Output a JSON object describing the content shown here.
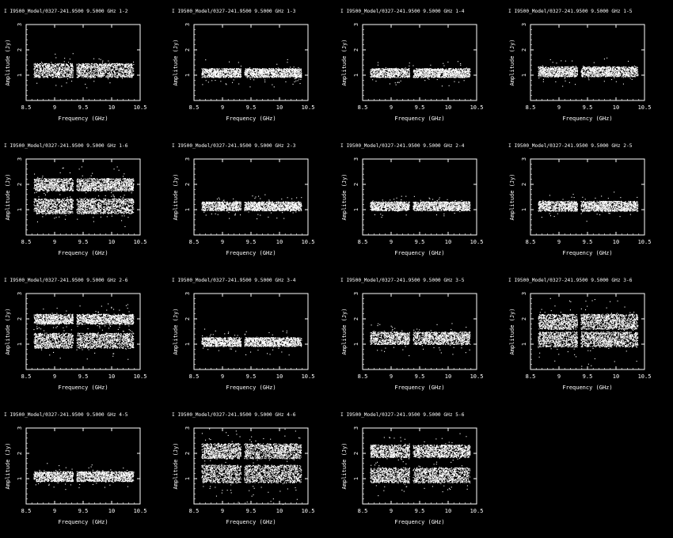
{
  "theme": {
    "background": "#000000",
    "foreground": "#ffffff"
  },
  "chart_data": [
    {
      "type": "scatter",
      "title": "I I9500_Model/0327-241.9500 9.5000 GHz  1-2",
      "xlabel": "Frequency (GHz)",
      "ylabel": "Amplitude (Jy)",
      "xlim": [
        8.5,
        10.5
      ],
      "ylim": [
        0,
        3
      ],
      "xticks": [
        8.5,
        9,
        9.5,
        10,
        10.5
      ],
      "yticks": [
        1,
        2,
        3
      ],
      "gap": [
        9.32,
        9.38
      ],
      "bands": [
        {
          "center": 1.2,
          "halfwidth": 0.28
        }
      ],
      "spread": 0.12
    },
    {
      "type": "scatter",
      "title": "I I9500_Model/0327-241.9500 9.5000 GHz  1-3",
      "xlabel": "Frequency (GHz)",
      "ylabel": "Amplitude (Jy)",
      "xlim": [
        8.5,
        10.5
      ],
      "ylim": [
        0,
        3
      ],
      "xticks": [
        8.5,
        9,
        9.5,
        10,
        10.5
      ],
      "yticks": [
        1,
        2,
        3
      ],
      "gap": [
        9.32,
        9.38
      ],
      "bands": [
        {
          "center": 1.1,
          "halfwidth": 0.18
        }
      ],
      "spread": 0.1
    },
    {
      "type": "scatter",
      "title": "I I9500_Model/0327-241.9500 9.5000 GHz  1-4",
      "xlabel": "Frequency (GHz)",
      "ylabel": "Amplitude (Jy)",
      "xlim": [
        8.5,
        10.5
      ],
      "ylim": [
        0,
        3
      ],
      "xticks": [
        8.5,
        9,
        9.5,
        10,
        10.5
      ],
      "yticks": [
        1,
        2,
        3
      ],
      "gap": [
        9.32,
        9.38
      ],
      "bands": [
        {
          "center": 1.1,
          "halfwidth": 0.18
        }
      ],
      "spread": 0.1
    },
    {
      "type": "scatter",
      "title": "I I9500_Model/0327-241.9500 9.5000 GHz  1-5",
      "xlabel": "Frequency (GHz)",
      "ylabel": "Amplitude (Jy)",
      "xlim": [
        8.5,
        10.5
      ],
      "ylim": [
        0,
        3
      ],
      "xticks": [
        8.5,
        9,
        9.5,
        10,
        10.5
      ],
      "yticks": [
        1,
        2,
        3
      ],
      "gap": [
        9.32,
        9.38
      ],
      "bands": [
        {
          "center": 1.15,
          "halfwidth": 0.2
        }
      ],
      "spread": 0.1
    },
    {
      "type": "scatter",
      "title": "I I9500_Model/0327-241.9500 9.5000 GHz  1-6",
      "xlabel": "Frequency (GHz)",
      "ylabel": "Amplitude (Jy)",
      "xlim": [
        8.5,
        10.5
      ],
      "ylim": [
        0,
        3
      ],
      "xticks": [
        8.5,
        9,
        9.5,
        10,
        10.5
      ],
      "yticks": [
        1,
        2,
        3
      ],
      "gap": [
        9.32,
        9.38
      ],
      "bands": [
        {
          "center": 1.15,
          "halfwidth": 0.3
        },
        {
          "center": 2.0,
          "halfwidth": 0.25
        }
      ],
      "spread": 0.15
    },
    {
      "type": "scatter",
      "title": "I I9500_Model/0327-241.9500 9.5000 GHz  2-3",
      "xlabel": "Frequency (GHz)",
      "ylabel": "Amplitude (Jy)",
      "xlim": [
        8.5,
        10.5
      ],
      "ylim": [
        0,
        3
      ],
      "xticks": [
        8.5,
        9,
        9.5,
        10,
        10.5
      ],
      "yticks": [
        1,
        2,
        3
      ],
      "gap": [
        9.32,
        9.38
      ],
      "bands": [
        {
          "center": 1.15,
          "halfwidth": 0.18
        }
      ],
      "spread": 0.1
    },
    {
      "type": "scatter",
      "title": "I I9500_Model/0327-241.9500 9.5000 GHz  2-4",
      "xlabel": "Frequency (GHz)",
      "ylabel": "Amplitude (Jy)",
      "xlim": [
        8.5,
        10.5
      ],
      "ylim": [
        0,
        3
      ],
      "xticks": [
        8.5,
        9,
        9.5,
        10,
        10.5
      ],
      "yticks": [
        1,
        2,
        3
      ],
      "gap": [
        9.32,
        9.38
      ],
      "bands": [
        {
          "center": 1.15,
          "halfwidth": 0.18
        }
      ],
      "spread": 0.1
    },
    {
      "type": "scatter",
      "title": "I I9500_Model/0327-241.9500 9.5000 GHz  2-5",
      "xlabel": "Frequency (GHz)",
      "ylabel": "Amplitude (Jy)",
      "xlim": [
        8.5,
        10.5
      ],
      "ylim": [
        0,
        3
      ],
      "xticks": [
        8.5,
        9,
        9.5,
        10,
        10.5
      ],
      "yticks": [
        1,
        2,
        3
      ],
      "gap": [
        9.32,
        9.38
      ],
      "bands": [
        {
          "center": 1.15,
          "halfwidth": 0.2
        }
      ],
      "spread": 0.1
    },
    {
      "type": "scatter",
      "title": "I I9500_Model/0327-241.9500 9.5000 GHz  2-6",
      "xlabel": "Frequency (GHz)",
      "ylabel": "Amplitude (Jy)",
      "xlim": [
        8.5,
        10.5
      ],
      "ylim": [
        0,
        3
      ],
      "xticks": [
        8.5,
        9,
        9.5,
        10,
        10.5
      ],
      "yticks": [
        1,
        2,
        3
      ],
      "gap": [
        9.32,
        9.38
      ],
      "bands": [
        {
          "center": 1.15,
          "halfwidth": 0.3
        },
        {
          "center": 2.0,
          "halfwidth": 0.2
        }
      ],
      "spread": 0.15
    },
    {
      "type": "scatter",
      "title": "I I9500_Model/0327-241.9500 9.5000 GHz  3-4",
      "xlabel": "Frequency (GHz)",
      "ylabel": "Amplitude (Jy)",
      "xlim": [
        8.5,
        10.5
      ],
      "ylim": [
        0,
        3
      ],
      "xticks": [
        8.5,
        9,
        9.5,
        10,
        10.5
      ],
      "yticks": [
        1,
        2,
        3
      ],
      "gap": [
        9.32,
        9.38
      ],
      "bands": [
        {
          "center": 1.1,
          "halfwidth": 0.18
        }
      ],
      "spread": 0.1
    },
    {
      "type": "scatter",
      "title": "I I9500_Model/0327-241.9500 9.5000 GHz  3-5",
      "xlabel": "Frequency (GHz)",
      "ylabel": "Amplitude (Jy)",
      "xlim": [
        8.5,
        10.5
      ],
      "ylim": [
        0,
        3
      ],
      "xticks": [
        8.5,
        9,
        9.5,
        10,
        10.5
      ],
      "yticks": [
        1,
        2,
        3
      ],
      "gap": [
        9.32,
        9.38
      ],
      "bands": [
        {
          "center": 1.25,
          "halfwidth": 0.25
        }
      ],
      "spread": 0.12
    },
    {
      "type": "scatter",
      "title": "I I9500_Model/0327-241.9500 9.5000 GHz  3-6",
      "xlabel": "Frequency (GHz)",
      "ylabel": "Amplitude (Jy)",
      "xlim": [
        8.5,
        10.5
      ],
      "ylim": [
        0,
        3
      ],
      "xticks": [
        8.5,
        9,
        9.5,
        10,
        10.5
      ],
      "yticks": [
        1,
        2,
        3
      ],
      "gap": [
        9.32,
        9.38
      ],
      "bands": [
        {
          "center": 1.2,
          "halfwidth": 0.3
        },
        {
          "center": 1.9,
          "halfwidth": 0.3
        }
      ],
      "spread": 0.4
    },
    {
      "type": "scatter",
      "title": "I I9500_Model/0327-241.9500 9.5000 GHz  4-5",
      "xlabel": "Frequency (GHz)",
      "ylabel": "Amplitude (Jy)",
      "xlim": [
        8.5,
        10.5
      ],
      "ylim": [
        0,
        3
      ],
      "xticks": [
        8.5,
        9,
        9.5,
        10,
        10.5
      ],
      "yticks": [
        1,
        2,
        3
      ],
      "gap": [
        9.32,
        9.38
      ],
      "bands": [
        {
          "center": 1.1,
          "halfwidth": 0.2
        }
      ],
      "spread": 0.1
    },
    {
      "type": "scatter",
      "title": "I I9500_Model/0327-241.9500 9.5000 GHz  4-6",
      "xlabel": "Frequency (GHz)",
      "ylabel": "Amplitude (Jy)",
      "xlim": [
        8.5,
        10.5
      ],
      "ylim": [
        0,
        3
      ],
      "xticks": [
        8.5,
        9,
        9.5,
        10,
        10.5
      ],
      "yticks": [
        1,
        2,
        3
      ],
      "gap": [
        9.32,
        9.38
      ],
      "bands": [
        {
          "center": 1.2,
          "halfwidth": 0.35
        },
        {
          "center": 2.1,
          "halfwidth": 0.3
        }
      ],
      "spread": 0.35
    },
    {
      "type": "scatter",
      "title": "I I9500_Model/0327-241.9500 9.5000 GHz  5-6",
      "xlabel": "Frequency (GHz)",
      "ylabel": "Amplitude (Jy)",
      "xlim": [
        8.5,
        10.5
      ],
      "ylim": [
        0,
        3
      ],
      "xticks": [
        8.5,
        9,
        9.5,
        10,
        10.5
      ],
      "yticks": [
        1,
        2,
        3
      ],
      "gap": [
        9.32,
        9.38
      ],
      "bands": [
        {
          "center": 1.15,
          "halfwidth": 0.3
        },
        {
          "center": 2.1,
          "halfwidth": 0.25
        }
      ],
      "spread": 0.15
    }
  ]
}
